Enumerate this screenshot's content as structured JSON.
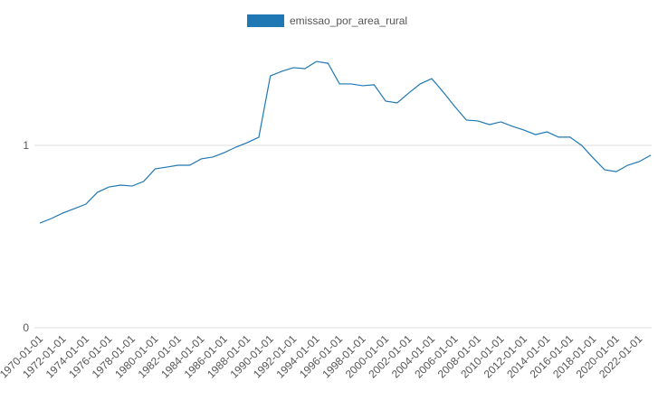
{
  "chart_data": {
    "type": "line",
    "categories": [
      "1970-01-01",
      null,
      "1972-01-01",
      null,
      "1974-01-01",
      null,
      "1976-01-01",
      null,
      "1978-01-01",
      null,
      "1980-01-01",
      null,
      "1982-01-01",
      null,
      "1984-01-01",
      null,
      "1986-01-01",
      null,
      "1988-01-01",
      null,
      "1990-01-01",
      null,
      "1992-01-01",
      null,
      "1994-01-01",
      null,
      "1996-01-01",
      null,
      "1998-01-01",
      null,
      "2000-01-01",
      null,
      "2002-01-01",
      null,
      "2004-01-01",
      null,
      "2006-01-01",
      null,
      "2008-01-01",
      null,
      "2010-01-01",
      null,
      "2012-01-01",
      null,
      "2014-01-01",
      null,
      "2016-01-01",
      null,
      "2018-01-01",
      null,
      "2020-01-01",
      null,
      "2022-01-01",
      null
    ],
    "series": [
      {
        "name": "emissao_por_area_rural",
        "color": "#1f77b4",
        "values": [
          0.574,
          0.599,
          0.629,
          0.653,
          0.678,
          0.743,
          0.772,
          0.782,
          0.777,
          0.802,
          0.871,
          0.881,
          0.891,
          0.891,
          0.926,
          0.936,
          0.96,
          0.99,
          1.015,
          1.045,
          1.381,
          1.406,
          1.426,
          1.421,
          1.46,
          1.45,
          1.337,
          1.337,
          1.327,
          1.332,
          1.243,
          1.233,
          1.287,
          1.337,
          1.366,
          1.292,
          1.213,
          1.139,
          1.134,
          1.114,
          1.129,
          1.104,
          1.084,
          1.059,
          1.074,
          1.045,
          1.045,
          1.0,
          0.931,
          0.866,
          0.856,
          0.891,
          0.911,
          0.946
        ]
      }
    ],
    "ylim": [
      0,
      1.75
    ],
    "yticks": [
      0,
      1
    ],
    "grid": true,
    "legend": "top"
  }
}
